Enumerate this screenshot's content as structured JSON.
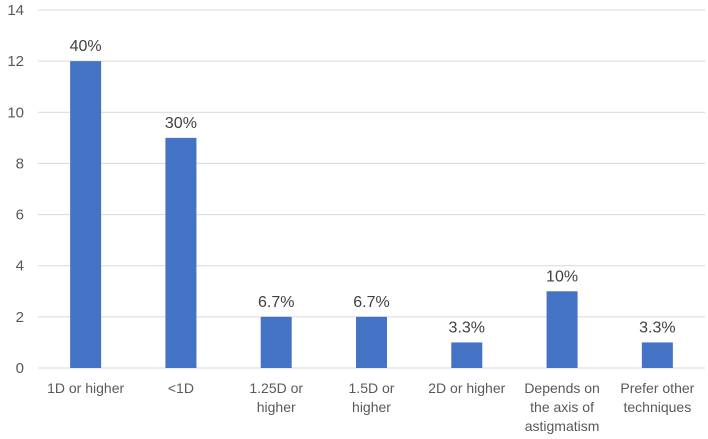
{
  "chart_data": {
    "type": "bar",
    "categories": [
      [
        "1D or higher"
      ],
      [
        "<1D"
      ],
      [
        "1.25D or",
        "higher"
      ],
      [
        "1.5D or",
        "higher"
      ],
      [
        "2D or higher"
      ],
      [
        "Depends on",
        "the axis of",
        "astigmatism"
      ],
      [
        "Prefer other",
        "techniques"
      ]
    ],
    "values": [
      12,
      9,
      2,
      2,
      1,
      3,
      1
    ],
    "data_labels": [
      "40%",
      "30%",
      "6.7%",
      "6.7%",
      "3.3%",
      "10%",
      "3.3%"
    ],
    "ylim": [
      0,
      14
    ],
    "yticks": [
      0,
      2,
      4,
      6,
      8,
      10,
      12,
      14
    ],
    "grid": true,
    "bar_color": "#4472c4",
    "title": "",
    "xlabel": "",
    "ylabel": ""
  }
}
